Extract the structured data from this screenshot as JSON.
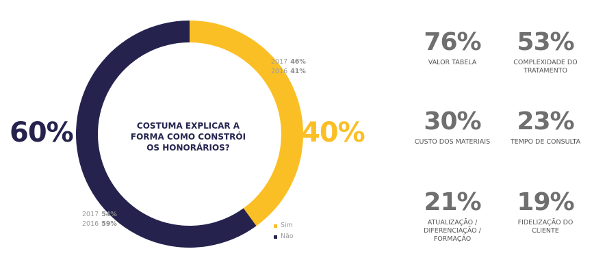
{
  "chart_data": {
    "type": "pie",
    "title": "COSTUMA EXPLICAR A FORMA COMO CONSTRÓI OS HONORÁRIOS?",
    "slices": [
      {
        "name": "Sim",
        "value": 40,
        "label": "40%",
        "color": "#fbbf26",
        "history": [
          {
            "year": "2017",
            "value": "46%"
          },
          {
            "year": "2016",
            "value": "41%"
          }
        ]
      },
      {
        "name": "Não",
        "value": 60,
        "label": "60%",
        "color": "#25234e",
        "history": [
          {
            "year": "2017",
            "value": "54%"
          },
          {
            "year": "2016",
            "value": "59%"
          }
        ]
      }
    ],
    "legend": {
      "placement": "bottom-right",
      "entries": [
        "Sim",
        "Não"
      ]
    }
  },
  "stats": [
    {
      "value": "76%",
      "label": "VALOR TABELA"
    },
    {
      "value": "53%",
      "label": "COMPLEXIDADE DO TRATAMENTO"
    },
    {
      "value": "30%",
      "label": "CUSTO DOS MATERIAIS"
    },
    {
      "value": "23%",
      "label": "TEMPO DE CONSULTA"
    },
    {
      "value": "21%",
      "label": "ATUALIZAÇÃO / DIFERENCIAÇÃO / FORMAÇÃO"
    },
    {
      "value": "19%",
      "label": "FIDELIZAÇÃO DO CLIENTE"
    }
  ]
}
